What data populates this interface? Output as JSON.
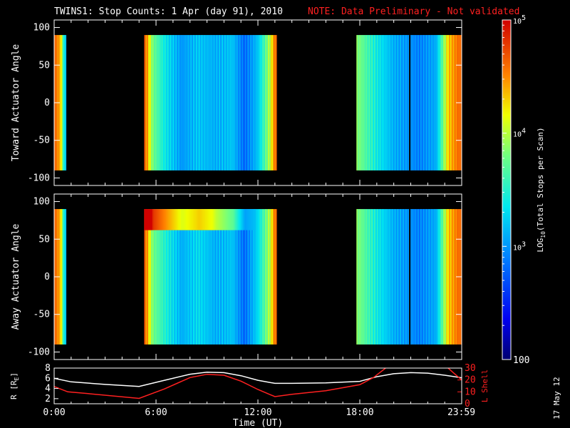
{
  "title": {
    "main": "TWINS1: Stop Counts:  1 Apr (day  91), 2010",
    "note": "NOTE: Data Preliminary - Not validated",
    "note_color": "#ff2020"
  },
  "date_stamp": "17 May 12",
  "colorbar": {
    "label": "LOG10(Total Stops per Scan)",
    "label_parts": [
      "LOG",
      "10",
      "(Total Stops per Scan)"
    ],
    "ticks": [
      {
        "value": 100,
        "label": "100"
      },
      {
        "value": 1000,
        "label": "10^3",
        "base": "10",
        "exp": "3"
      },
      {
        "value": 10000,
        "label": "10^4",
        "base": "10",
        "exp": "4"
      },
      {
        "value": 100000,
        "label": "10^5",
        "base": "10",
        "exp": "5"
      }
    ],
    "range": [
      100,
      100000
    ],
    "scale": "log"
  },
  "chart_data": [
    {
      "type": "heatmap",
      "panel": "top",
      "ylabel": "Toward Actuator Angle",
      "ylim": [
        -110,
        110
      ],
      "yticks": [
        -100,
        -50,
        0,
        50,
        100
      ],
      "xlim_hours": [
        0,
        24
      ],
      "y_extent": [
        -90,
        90
      ],
      "data_intervals_hours": [
        [
          0,
          0.7
        ],
        [
          5.3,
          13.1
        ],
        [
          17.8,
          24
        ]
      ],
      "log10_counts_profile": [
        {
          "t": 0.1,
          "v": 4.6
        },
        {
          "t": 0.4,
          "v": 4.3
        },
        {
          "t": 0.6,
          "v": 3.3
        },
        {
          "t": 5.4,
          "v": 4.6
        },
        {
          "t": 5.8,
          "v": 3.8
        },
        {
          "t": 6.5,
          "v": 3.4
        },
        {
          "t": 7.5,
          "v": 3.0
        },
        {
          "t": 8.5,
          "v": 3.2
        },
        {
          "t": 9.5,
          "v": 3.1
        },
        {
          "t": 10.5,
          "v": 3.2
        },
        {
          "t": 11.2,
          "v": 2.8
        },
        {
          "t": 12.0,
          "v": 3.2
        },
        {
          "t": 12.7,
          "v": 4.0
        },
        {
          "t": 13.0,
          "v": 4.6
        },
        {
          "t": 18.0,
          "v": 3.8
        },
        {
          "t": 19.0,
          "v": 3.4
        },
        {
          "t": 20.0,
          "v": 3.1
        },
        {
          "t": 20.8,
          "v": 3.0
        },
        {
          "t": 21.5,
          "v": 2.9
        },
        {
          "t": 22.5,
          "v": 3.1
        },
        {
          "t": 23.2,
          "v": 4.3
        },
        {
          "t": 23.8,
          "v": 4.6
        }
      ],
      "gap_line_hours": 20.9
    },
    {
      "type": "heatmap",
      "panel": "middle",
      "ylabel": "Away Actuator Angle",
      "ylim": [
        -110,
        110
      ],
      "yticks": [
        -100,
        -50,
        0,
        50,
        100
      ],
      "xlim_hours": [
        0,
        24
      ],
      "y_extent": [
        -90,
        90
      ],
      "data_intervals_hours": [
        [
          0,
          0.7
        ],
        [
          5.3,
          13.1
        ],
        [
          17.8,
          24
        ]
      ],
      "enhanced_band": {
        "hours": [
          5.3,
          11.8
        ],
        "angle": [
          62,
          90
        ],
        "log10_counts": 4.3
      },
      "log10_counts_profile": [
        {
          "t": 0.1,
          "v": 4.6
        },
        {
          "t": 0.4,
          "v": 4.3
        },
        {
          "t": 0.6,
          "v": 3.3
        },
        {
          "t": 5.4,
          "v": 4.6
        },
        {
          "t": 5.8,
          "v": 3.8
        },
        {
          "t": 6.5,
          "v": 3.5
        },
        {
          "t": 7.5,
          "v": 3.1
        },
        {
          "t": 8.5,
          "v": 3.3
        },
        {
          "t": 9.5,
          "v": 3.1
        },
        {
          "t": 10.5,
          "v": 3.2
        },
        {
          "t": 11.2,
          "v": 2.8
        },
        {
          "t": 12.0,
          "v": 3.3
        },
        {
          "t": 12.7,
          "v": 4.0
        },
        {
          "t": 13.0,
          "v": 4.6
        },
        {
          "t": 18.0,
          "v": 3.8
        },
        {
          "t": 19.0,
          "v": 3.4
        },
        {
          "t": 20.0,
          "v": 3.1
        },
        {
          "t": 20.8,
          "v": 3.0
        },
        {
          "t": 21.5,
          "v": 2.9
        },
        {
          "t": 22.5,
          "v": 3.1
        },
        {
          "t": 23.2,
          "v": 4.3
        },
        {
          "t": 23.8,
          "v": 4.6
        }
      ],
      "gap_line_hours": 20.9
    },
    {
      "type": "line",
      "panel": "bottom",
      "xlabel": "Time (UT)",
      "xticks": [
        "0:00",
        "6:00",
        "12:00",
        "18:00",
        "23:59"
      ],
      "xtick_hours": [
        0,
        6,
        12,
        18,
        23.98
      ],
      "ylabel_left": "R [RE]",
      "ylabel_left_parts": [
        "R [R",
        "E",
        "]"
      ],
      "ylim_left": [
        1,
        8
      ],
      "yticks_left": [
        2,
        4,
        6,
        8
      ],
      "ylabel_right": "L Shell",
      "ylabel_right_color": "#ff2020",
      "ylim_right": [
        0,
        30
      ],
      "yticks_right": [
        0,
        10,
        20,
        30
      ],
      "series": [
        {
          "axis": "left",
          "color": "#ffffff",
          "x": [
            0,
            1,
            3,
            5,
            6.5,
            8,
            9,
            10,
            11,
            12,
            13,
            14,
            16,
            18,
            19,
            20,
            21,
            22,
            23,
            24
          ],
          "y": [
            6.0,
            5.3,
            4.8,
            4.4,
            5.6,
            6.8,
            7.2,
            7.1,
            6.5,
            5.6,
            5.0,
            5.0,
            5.1,
            5.4,
            6.3,
            6.9,
            7.1,
            7.0,
            6.6,
            6.1
          ]
        },
        {
          "axis": "right",
          "color": "#ff2020",
          "x": [
            0,
            0.8,
            2,
            5,
            6.5,
            8,
            9,
            10,
            11,
            12,
            13,
            14,
            16,
            18,
            18.8,
            19.7,
            20.2,
            22.6,
            23.2,
            24
          ],
          "y": [
            14.5,
            10.0,
            8.5,
            4.5,
            12.5,
            22.0,
            24.8,
            24.0,
            19.0,
            12.0,
            6.0,
            8.0,
            11.0,
            16.0,
            22.0,
            32,
            38,
            38,
            30,
            20
          ]
        }
      ]
    }
  ]
}
